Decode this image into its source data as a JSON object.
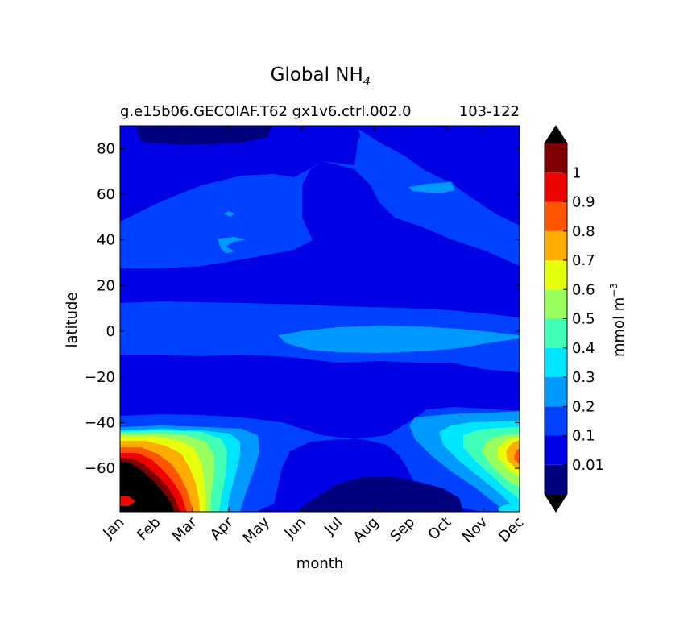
{
  "chart_data": {
    "type": "heatmap",
    "title": "Global NH",
    "title_subscript": "4",
    "subtitle_left": "g.e15b06.GECOIAF.T62 gx1v6.ctrl.002.0",
    "subtitle_right": "103-122",
    "xlabel": "month",
    "ylabel": "latitude",
    "x_categories": [
      "Jan",
      "Feb",
      "Mar",
      "Apr",
      "May",
      "Jun",
      "Jul",
      "Aug",
      "Sep",
      "Oct",
      "Nov",
      "Dec"
    ],
    "y_ticks": [
      80,
      60,
      40,
      20,
      0,
      -20,
      -40,
      -60
    ],
    "ylim": [
      -79,
      90
    ],
    "colorbar": {
      "label_main": "mmol m",
      "label_exponent": "−3",
      "levels": [
        0.01,
        0.1,
        0.2,
        0.3,
        0.4,
        0.5,
        0.6,
        0.7,
        0.8,
        0.9,
        1
      ],
      "tick_labels": [
        "0.01",
        "0.1",
        "0.2",
        "0.3",
        "0.4",
        "0.5",
        "0.6",
        "0.7",
        "0.8",
        "0.9",
        "1"
      ],
      "colors": [
        "#00007f",
        "#0000e5",
        "#0040ff",
        "#0099ff",
        "#00e5ff",
        "#40ffb7",
        "#99ff5e",
        "#e5ff0d",
        "#ffad00",
        "#ff5400",
        "#ed0400",
        "#7f0000"
      ],
      "under_color": "#000000",
      "over_color": "#000000",
      "extend": "both"
    }
  }
}
